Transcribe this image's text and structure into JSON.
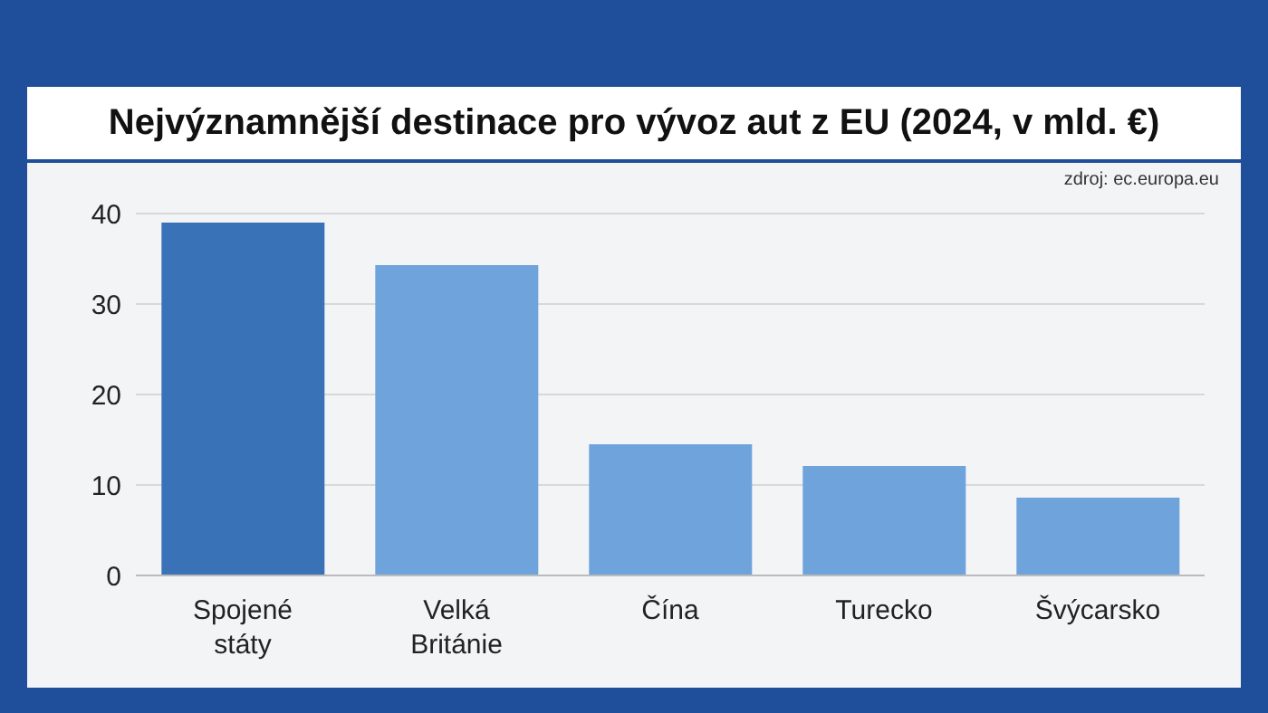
{
  "chart_data": {
    "type": "bar",
    "title": "Nejvýznamnější destinace pro vývoz aut z EU (2024, v mld. €)",
    "categories": [
      "Spojené státy",
      "Velká Británie",
      "Čína",
      "Turecko",
      "Švýcarsko"
    ],
    "values": [
      39,
      34.3,
      14.5,
      12.1,
      8.6
    ],
    "colors": [
      "#3a72b8",
      "#6fa3dc",
      "#6fa3dc",
      "#6fa3dc",
      "#6fa3dc"
    ],
    "ylim": [
      0,
      40
    ],
    "yticks": [
      0,
      10,
      20,
      30,
      40
    ],
    "grid": "y",
    "annotations": [
      "zdroj: ec.europa.eu"
    ]
  }
}
